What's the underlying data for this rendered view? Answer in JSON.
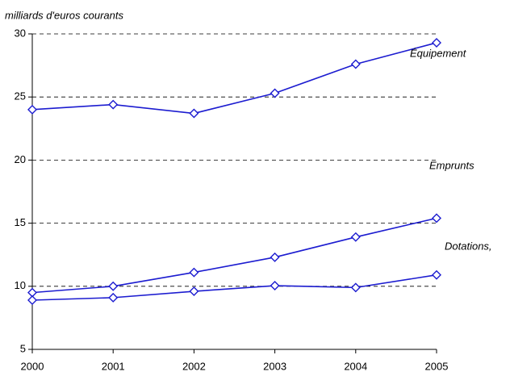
{
  "chart_data": {
    "type": "line",
    "y_label": "milliards d'euros courants",
    "categories": [
      "2000",
      "2001",
      "2002",
      "2003",
      "2004",
      "2005"
    ],
    "series": [
      {
        "name": "Équipement",
        "color": "#1c1cd0",
        "values": [
          24.0,
          24.4,
          23.7,
          25.3,
          27.6,
          29.3
        ]
      },
      {
        "name": "Emprunts",
        "color": "#1c1cd0",
        "values": [
          9.5,
          10.0,
          11.1,
          12.3,
          13.9,
          15.4
        ]
      },
      {
        "name": "Dotations,",
        "color": "#1c1cd0",
        "values": [
          8.9,
          9.1,
          9.6,
          10.05,
          9.9,
          10.9
        ]
      }
    ],
    "ylim": [
      5,
      30
    ],
    "yticks": [
      5,
      10,
      15,
      20,
      25,
      30
    ],
    "grid": true
  }
}
